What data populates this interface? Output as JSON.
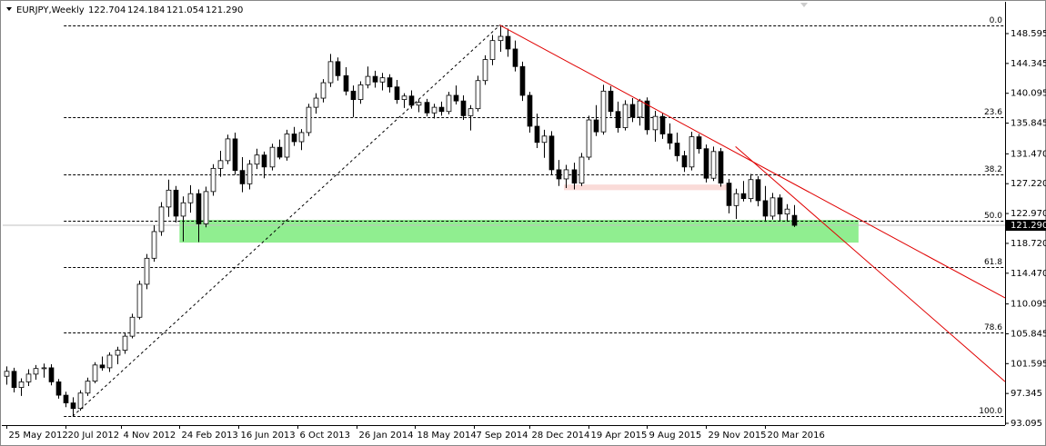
{
  "chart_data": {
    "type": "candlestick",
    "header": {
      "symbol": "EURJPY,Weekly",
      "ohlc": [
        "122.704",
        "124.184",
        "121.054",
        "121.290"
      ]
    },
    "candles": [
      [
        99.8,
        101.2,
        98.6,
        100.5
      ],
      [
        100.5,
        101.0,
        97.5,
        98.2
      ],
      [
        98.2,
        99.5,
        97.0,
        99.0
      ],
      [
        99.0,
        100.8,
        98.4,
        100.1
      ],
      [
        100.1,
        101.4,
        99.3,
        100.9
      ],
      [
        100.9,
        101.6,
        99.6,
        101.0
      ],
      [
        101.0,
        101.5,
        98.5,
        99.0
      ],
      [
        99.0,
        99.4,
        96.6,
        97.1
      ],
      [
        97.1,
        97.6,
        95.4,
        96.0
      ],
      [
        96.0,
        96.8,
        94.1,
        95.2
      ],
      [
        95.2,
        97.8,
        94.9,
        97.4
      ],
      [
        97.4,
        99.6,
        97.0,
        99.1
      ],
      [
        99.1,
        101.8,
        98.8,
        101.4
      ],
      [
        101.4,
        102.6,
        100.6,
        101.0
      ],
      [
        101.0,
        103.2,
        100.4,
        102.8
      ],
      [
        102.8,
        104.0,
        101.5,
        103.5
      ],
      [
        103.5,
        105.9,
        103.0,
        105.5
      ],
      [
        105.5,
        108.7,
        105.2,
        108.2
      ],
      [
        108.2,
        113.4,
        107.9,
        112.9
      ],
      [
        112.9,
        117.2,
        112.2,
        116.6
      ],
      [
        116.6,
        121.3,
        116.1,
        120.4
      ],
      [
        120.4,
        124.6,
        119.8,
        123.9
      ],
      [
        123.9,
        127.8,
        122.5,
        126.3
      ],
      [
        126.3,
        126.9,
        121.7,
        122.6
      ],
      [
        122.6,
        125.4,
        119.0,
        124.5
      ],
      [
        124.5,
        127.0,
        123.1,
        125.8
      ],
      [
        125.8,
        126.4,
        118.9,
        121.5
      ],
      [
        121.5,
        126.8,
        121.0,
        126.1
      ],
      [
        126.1,
        130.0,
        125.5,
        129.4
      ],
      [
        129.4,
        131.9,
        128.2,
        130.5
      ],
      [
        130.5,
        134.2,
        130.0,
        133.6
      ],
      [
        133.6,
        134.5,
        128.5,
        129.1
      ],
      [
        129.1,
        131.0,
        126.0,
        127.2
      ],
      [
        127.2,
        130.6,
        126.4,
        130.0
      ],
      [
        130.0,
        132.2,
        129.3,
        131.3
      ],
      [
        131.3,
        131.8,
        128.0,
        129.6
      ],
      [
        129.6,
        132.9,
        129.1,
        132.4
      ],
      [
        132.4,
        133.5,
        130.7,
        131.0
      ],
      [
        131.0,
        134.9,
        130.5,
        134.3
      ],
      [
        134.3,
        135.3,
        132.6,
        133.2
      ],
      [
        133.2,
        135.0,
        132.0,
        134.5
      ],
      [
        134.5,
        138.6,
        134.0,
        138.1
      ],
      [
        138.1,
        140.1,
        137.2,
        139.4
      ],
      [
        139.4,
        142.1,
        138.8,
        141.6
      ],
      [
        141.6,
        145.7,
        141.0,
        144.6
      ],
      [
        144.6,
        145.2,
        141.9,
        142.6
      ],
      [
        142.6,
        143.8,
        139.8,
        140.4
      ],
      [
        140.4,
        141.2,
        136.7,
        139.2
      ],
      [
        139.2,
        141.8,
        138.6,
        141.3
      ],
      [
        141.3,
        143.9,
        140.8,
        142.5
      ],
      [
        142.5,
        143.3,
        140.9,
        141.7
      ],
      [
        141.7,
        143.0,
        140.5,
        142.3
      ],
      [
        142.3,
        142.8,
        140.2,
        141.0
      ],
      [
        141.0,
        142.0,
        138.6,
        139.2
      ],
      [
        139.2,
        140.1,
        138.0,
        139.7
      ],
      [
        139.7,
        140.5,
        137.9,
        138.4
      ],
      [
        138.4,
        139.2,
        137.4,
        138.8
      ],
      [
        138.8,
        139.3,
        136.8,
        137.3
      ],
      [
        137.3,
        138.6,
        136.5,
        138.1
      ],
      [
        138.1,
        138.9,
        136.9,
        137.5
      ],
      [
        137.5,
        140.3,
        137.1,
        139.8
      ],
      [
        139.8,
        141.2,
        138.5,
        139.0
      ],
      [
        139.0,
        139.8,
        136.3,
        136.9
      ],
      [
        136.9,
        138.4,
        134.8,
        137.9
      ],
      [
        137.9,
        142.6,
        137.5,
        141.9
      ],
      [
        141.9,
        145.5,
        141.3,
        144.9
      ],
      [
        144.9,
        148.4,
        144.1,
        147.6
      ],
      [
        147.6,
        149.8,
        146.0,
        148.2
      ],
      [
        148.2,
        149.3,
        145.3,
        146.4
      ],
      [
        146.4,
        147.6,
        143.2,
        143.9
      ],
      [
        143.9,
        144.6,
        139.0,
        139.8
      ],
      [
        139.8,
        140.3,
        134.5,
        135.4
      ],
      [
        135.4,
        137.2,
        132.3,
        133.1
      ],
      [
        133.1,
        134.9,
        130.9,
        134.0
      ],
      [
        134.0,
        134.7,
        128.5,
        129.2
      ],
      [
        129.2,
        130.6,
        126.9,
        127.9
      ],
      [
        127.9,
        129.9,
        126.6,
        129.2
      ],
      [
        129.2,
        130.2,
        126.4,
        127.3
      ],
      [
        127.3,
        131.6,
        126.9,
        131.0
      ],
      [
        131.0,
        136.9,
        130.6,
        136.3
      ],
      [
        136.3,
        138.4,
        134.0,
        134.6
      ],
      [
        134.6,
        141.3,
        134.2,
        140.4
      ],
      [
        140.4,
        141.1,
        136.8,
        137.5
      ],
      [
        137.5,
        138.9,
        134.5,
        135.2
      ],
      [
        135.2,
        139.1,
        134.8,
        138.5
      ],
      [
        138.5,
        139.4,
        136.0,
        136.7
      ],
      [
        136.7,
        139.3,
        135.5,
        139.0
      ],
      [
        139.0,
        139.5,
        134.2,
        134.9
      ],
      [
        134.9,
        137.6,
        133.2,
        136.8
      ],
      [
        136.8,
        137.3,
        133.6,
        134.3
      ],
      [
        134.3,
        135.8,
        132.1,
        133.0
      ],
      [
        133.0,
        134.5,
        130.4,
        131.2
      ],
      [
        131.2,
        131.9,
        128.9,
        129.6
      ],
      [
        129.6,
        134.6,
        129.1,
        133.9
      ],
      [
        133.9,
        134.3,
        131.5,
        132.2
      ],
      [
        132.2,
        132.8,
        127.4,
        128.0
      ],
      [
        128.0,
        132.5,
        127.6,
        131.8
      ],
      [
        131.8,
        132.3,
        126.8,
        127.3
      ],
      [
        127.3,
        127.9,
        123.0,
        124.1
      ],
      [
        124.1,
        126.5,
        122.2,
        125.8
      ],
      [
        125.8,
        127.6,
        124.7,
        125.1
      ],
      [
        125.1,
        128.6,
        124.6,
        127.8
      ],
      [
        127.8,
        128.3,
        124.0,
        124.8
      ],
      [
        124.8,
        126.9,
        121.8,
        122.6
      ],
      [
        122.6,
        125.9,
        122.1,
        125.2
      ],
      [
        125.2,
        125.7,
        121.9,
        122.9
      ],
      [
        122.9,
        124.3,
        121.8,
        123.6
      ],
      [
        122.704,
        124.184,
        121.054,
        121.29
      ]
    ],
    "xlim": [
      -0.5,
      135.6
    ],
    "xticks": [
      {
        "value": 0,
        "label": "25 May 2012"
      },
      {
        "value": 8,
        "label": "20 Jul 2012"
      },
      {
        "value": 15.5,
        "label": "4 Nov 2012"
      },
      {
        "value": 23.5,
        "label": "24 Feb 2013"
      },
      {
        "value": 31.5,
        "label": "16 Jun 2013"
      },
      {
        "value": 39.5,
        "label": "6 Oct 2013"
      },
      {
        "value": 47.5,
        "label": "26 Jan 2014"
      },
      {
        "value": 55.5,
        "label": "18 May 2014"
      },
      {
        "value": 63.5,
        "label": "7 Sep 2014"
      },
      {
        "value": 71,
        "label": "28 Dec 2014"
      },
      {
        "value": 79,
        "label": "19 Apr 2015"
      },
      {
        "value": 87,
        "label": "9 Aug 2015"
      },
      {
        "value": 95,
        "label": "29 Nov 2015"
      },
      {
        "value": 103,
        "label": "20 Mar 2016"
      }
    ],
    "ylim": [
      92.84,
      152.99
    ],
    "yticks": [
      148.595,
      144.345,
      140.095,
      135.845,
      {
        "value": 131.47,
        "label": "131.470"
      },
      {
        "value": 127.22,
        "label": "127.220"
      },
      {
        "value": 122.97,
        "label": "122.970"
      },
      {
        "value": 118.72,
        "label": "118.720"
      },
      {
        "value": 114.47,
        "label": "114.470"
      },
      110.095,
      105.845,
      101.595,
      97.345,
      93.095
    ],
    "last_price": {
      "value": 121.29,
      "label": "121.290"
    },
    "bull_color": "#ffffff",
    "bear_color": "#000000",
    "outline_color": "#000000",
    "fibonacci": {
      "x_start": 7.8,
      "color": "#000000",
      "levels": [
        {
          "label": "0.0",
          "price": 149.8
        },
        {
          "label": "23.6",
          "price": 136.65
        },
        {
          "label": "38.2",
          "price": 128.52
        },
        {
          "label": "50.0",
          "price": 121.95
        },
        {
          "label": "61.8",
          "price": 115.38
        },
        {
          "label": "78.6",
          "price": 106.02
        },
        {
          "label": "100.0",
          "price": 94.1
        }
      ]
    },
    "trendlines": [
      {
        "x": [
          9,
          67
        ],
        "y": [
          94.1,
          149.8
        ],
        "color": "#000000",
        "dashed": true
      },
      {
        "x": [
          67,
          135.6
        ],
        "y": [
          149.8,
          110.95
        ],
        "color": "#e00000",
        "dashed": false
      },
      {
        "x": [
          99,
          135.6
        ],
        "y": [
          132.5,
          99.04
        ],
        "color": "#e00000",
        "dashed": false
      }
    ],
    "zones": [
      {
        "x": [
          23.5,
          115.7
        ],
        "y": [
          118.83,
          122.07
        ],
        "color": "#90ee90"
      },
      {
        "x": [
          75.7,
          98
        ],
        "y": [
          126.3,
          127.1
        ],
        "color": "#fadbd8"
      }
    ]
  }
}
